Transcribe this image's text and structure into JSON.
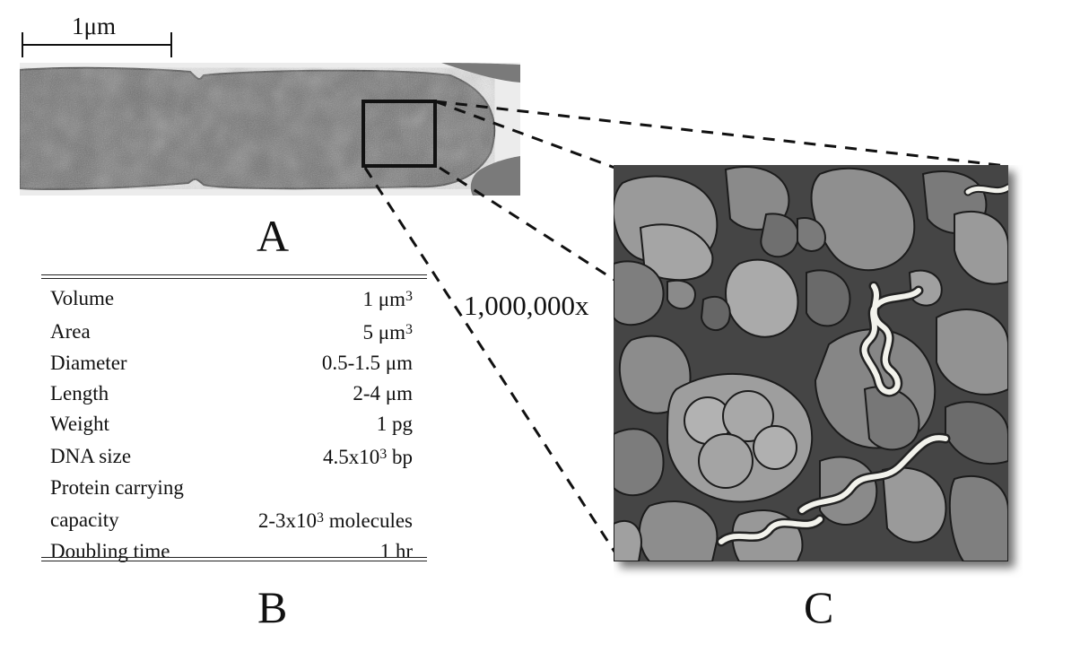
{
  "scale_bar": {
    "label": "1μm"
  },
  "panel_letters": {
    "a": "A",
    "b": "B",
    "c": "C"
  },
  "magnification": "1,000,000x",
  "properties": [
    {
      "label": "Volume",
      "value": "1 μm",
      "sup": "3"
    },
    {
      "label": "Area",
      "value": "5 μm",
      "sup": "3"
    },
    {
      "label": "Diameter",
      "value": "0.5-1.5 μm",
      "sup": ""
    },
    {
      "label": "Length",
      "value": "2-4 μm",
      "sup": ""
    },
    {
      "label": "Weight",
      "value": "1 pg",
      "sup": ""
    },
    {
      "label": "DNA size",
      "value": "4.5x10",
      "sup": "3",
      "suffix": " bp"
    },
    {
      "label": "Protein carrying",
      "value": "",
      "sup": ""
    },
    {
      "label": "capacity",
      "value": "2-3x10",
      "sup": "3",
      "suffix": " molecules"
    },
    {
      "label": "Doubling time",
      "value": "1 hr",
      "sup": ""
    }
  ]
}
